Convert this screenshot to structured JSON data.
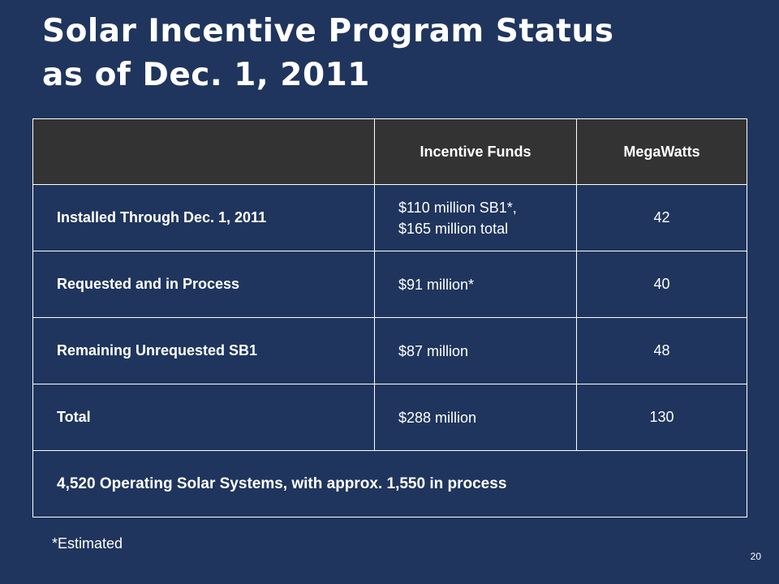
{
  "title": {
    "line1": "Solar Incentive Program Status",
    "line2": "as of Dec. 1, 2011"
  },
  "table": {
    "headers": [
      "",
      "Incentive Funds",
      "MegaWatts"
    ],
    "rows": [
      {
        "label": "Installed Through Dec. 1, 2011",
        "funds_line1": "$110 million SB1*,",
        "funds_line2": "$165 million total",
        "megawatts": "42"
      },
      {
        "label": "Requested and in Process",
        "funds": "$91 million*",
        "megawatts": "40"
      },
      {
        "label": "Remaining Unrequested SB1",
        "funds": "$87 million",
        "megawatts": "48"
      },
      {
        "label": "Total",
        "funds": "$288 million",
        "megawatts": "130"
      }
    ],
    "summary": "4,520 Operating Solar Systems, with approx. 1,550 in process"
  },
  "footnote": "*Estimated",
  "page_number": "20"
}
